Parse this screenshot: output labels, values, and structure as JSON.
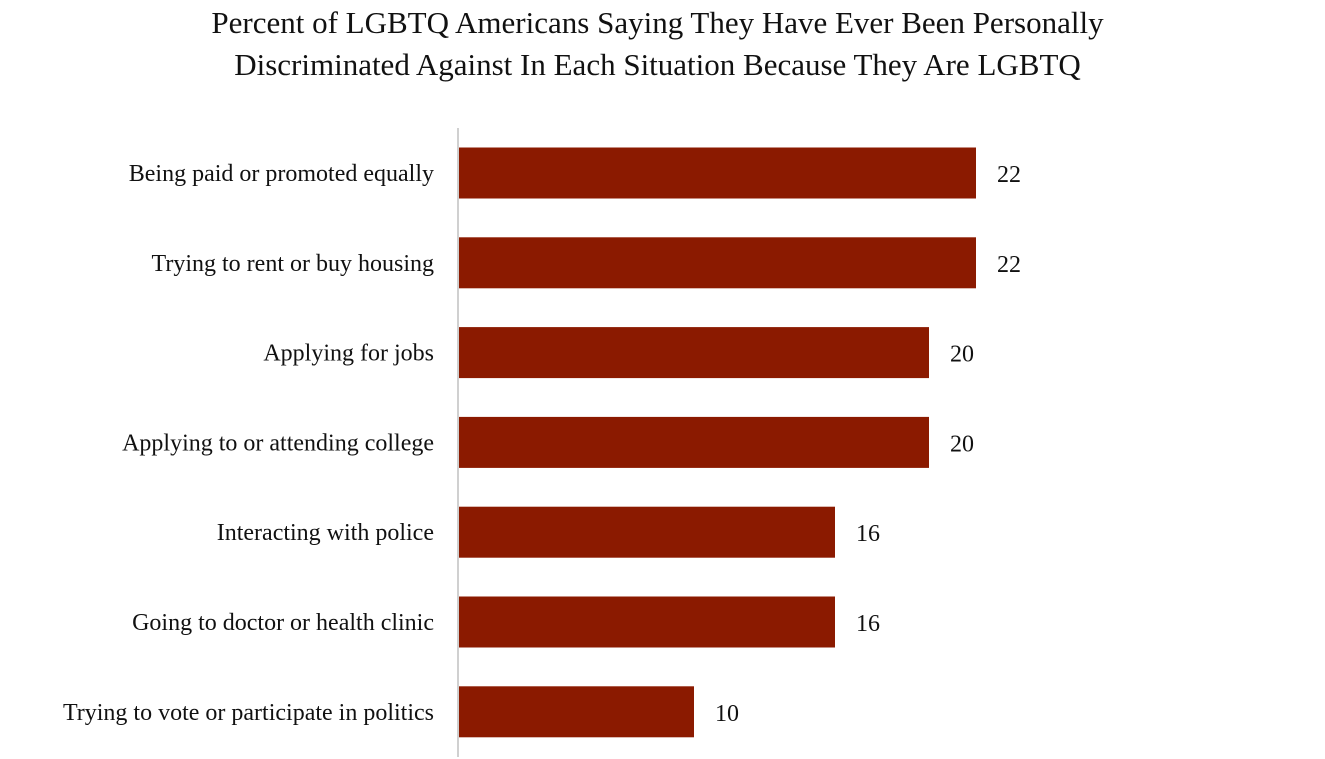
{
  "chart_data": {
    "type": "bar",
    "orientation": "horizontal",
    "title_lines": [
      "Percent of LGBTQ Americans Saying They Have Ever Been Personally",
      "Discriminated Against In Each Situation Because They Are LGBTQ"
    ],
    "categories": [
      "Being paid or promoted equally",
      "Trying to rent or buy housing",
      "Applying for jobs",
      "Applying to or attending college",
      "Interacting with police",
      "Going to doctor or health clinic",
      "Trying to vote or participate in politics"
    ],
    "values": [
      22,
      22,
      20,
      20,
      16,
      16,
      10
    ],
    "value_labels": [
      "22",
      "22",
      "20",
      "20",
      "16",
      "16",
      "10"
    ],
    "xlim": [
      0,
      30
    ],
    "grid": false,
    "legend": "none",
    "bar_color": "#8b1a00",
    "axis_color": "#d0d0d0"
  }
}
